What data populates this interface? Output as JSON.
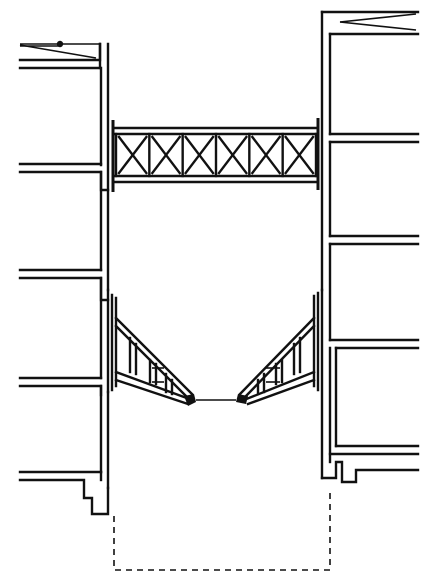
{
  "drawing": {
    "type": "structural-section",
    "line_color": "#111111",
    "background_color": "#ffffff",
    "components": [
      "left-building-section",
      "right-building-section",
      "upper-truss-bridge",
      "lower-angled-struts",
      "excavation-outline"
    ],
    "truss_panels": 6,
    "left_floors": 4,
    "right_floors": 4
  }
}
